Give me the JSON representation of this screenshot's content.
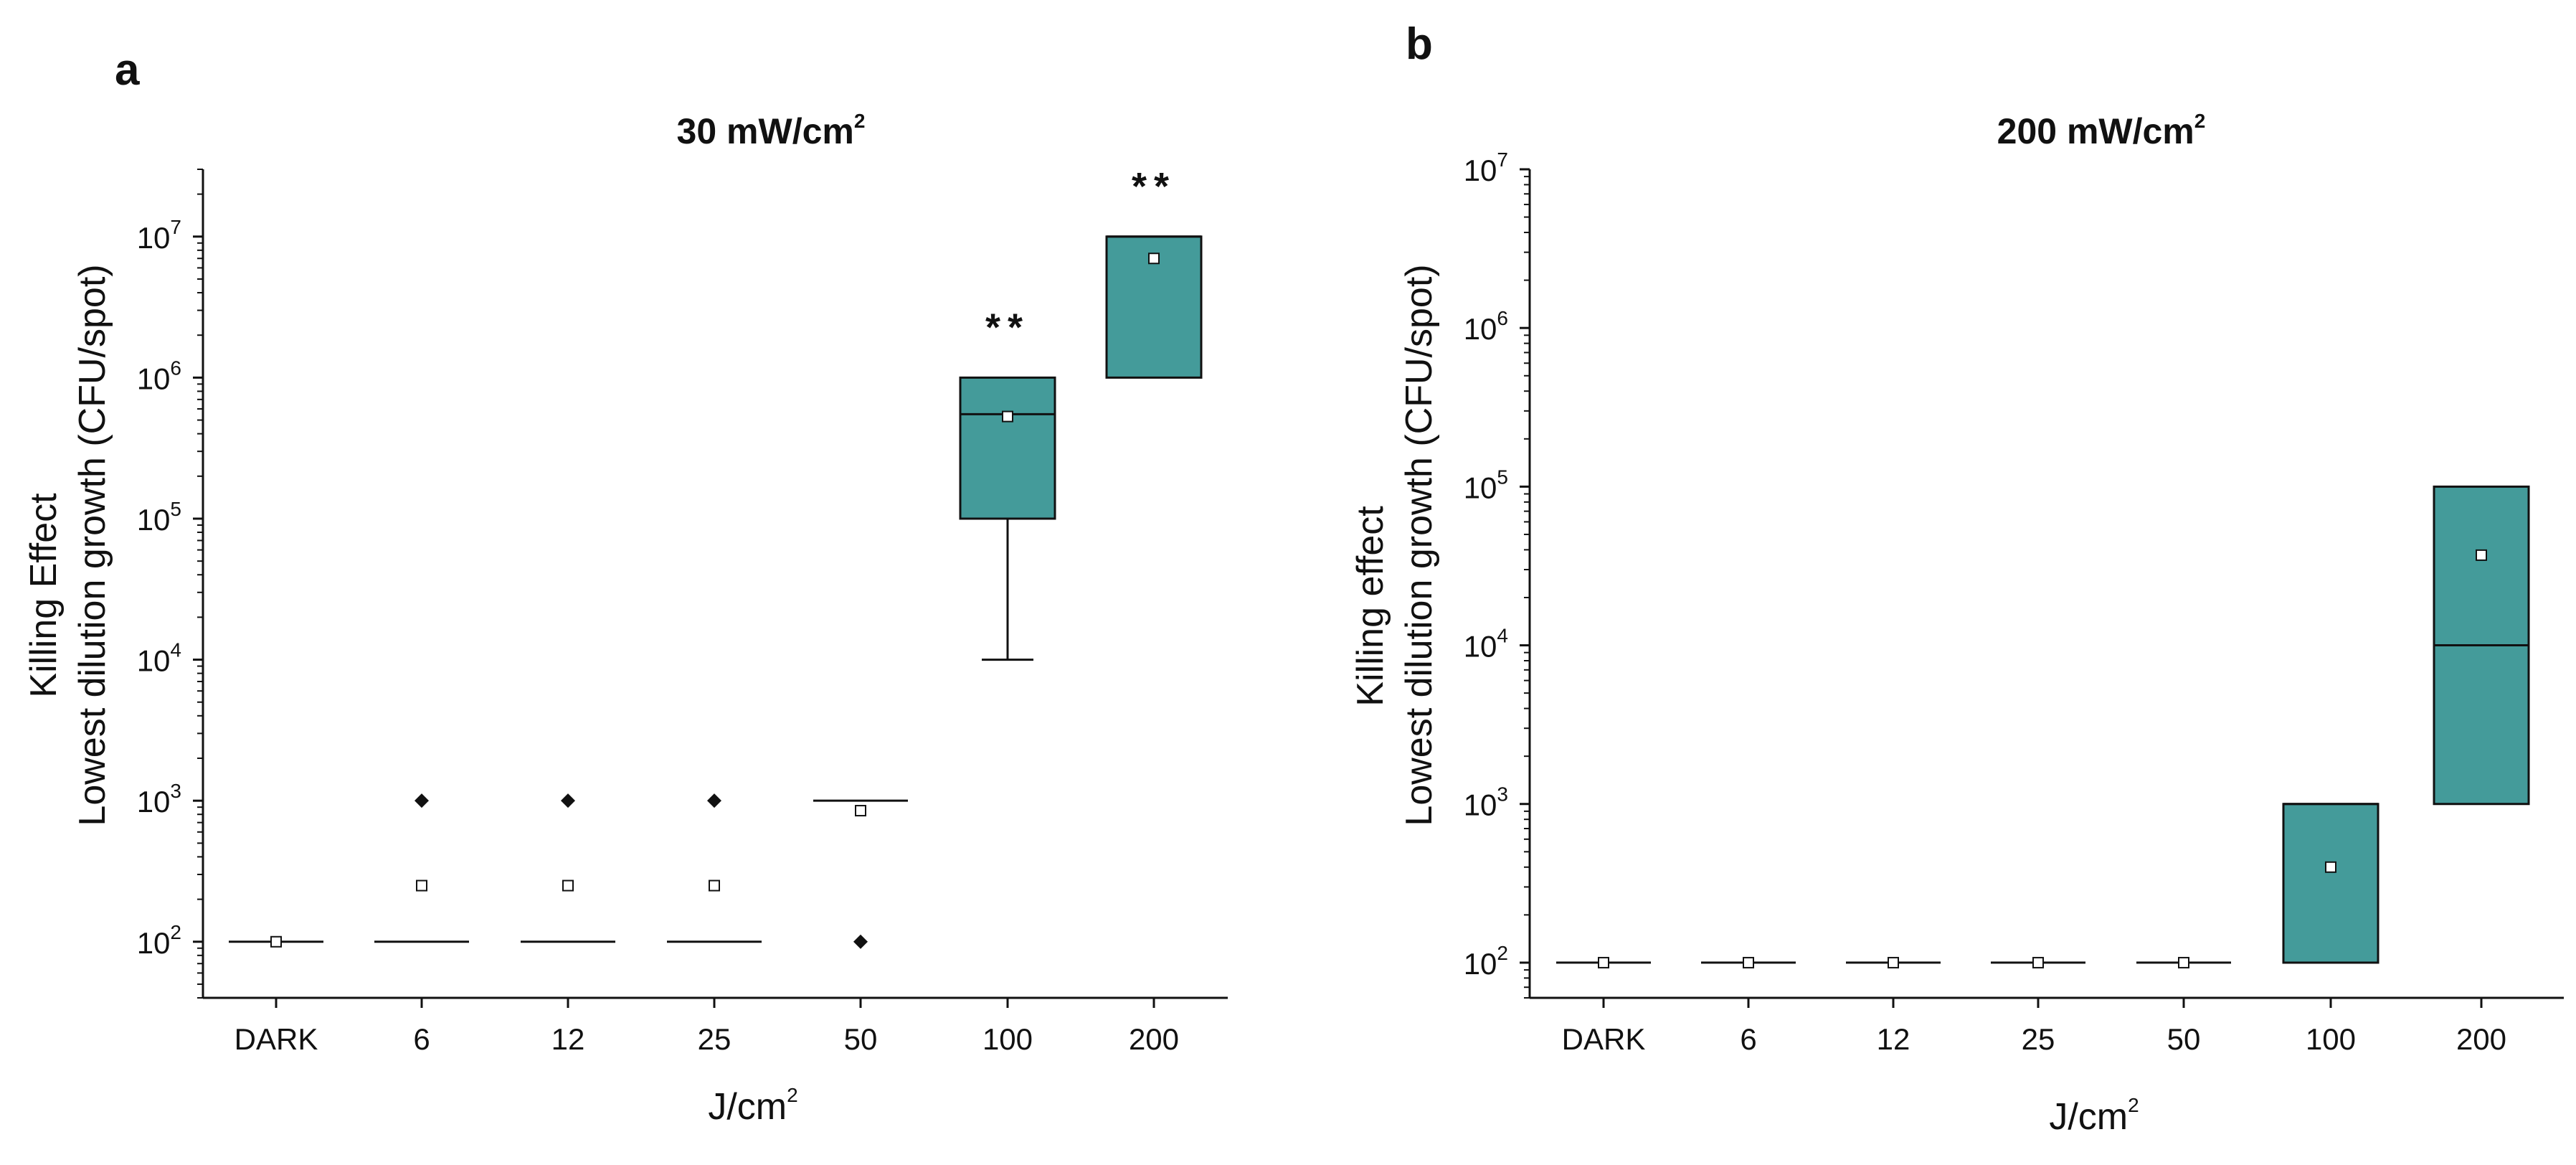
{
  "colors": {
    "box_fill": "#449B9A",
    "stroke": "#111111"
  },
  "chart_data": [
    {
      "panel": "a",
      "type": "box",
      "title_base": "30 mW/cm",
      "title_exp": "2",
      "xlabel_base": "J/cm",
      "xlabel_exp": "2",
      "ylabel_line1": "Killing Effect",
      "ylabel_line2": "Lowest dilution growth (CFU/spot)",
      "yscale": "log10",
      "ylim": [
        40,
        30000000
      ],
      "y_ticks": [
        {
          "e": 2
        },
        {
          "e": 3
        },
        {
          "e": 4
        },
        {
          "e": 5
        },
        {
          "e": 6
        },
        {
          "e": 7
        }
      ],
      "categories": [
        "DARK",
        "6",
        "12",
        "25",
        "50",
        "100",
        "200"
      ],
      "boxes": [
        {
          "category": "DARK",
          "q1": 100,
          "median": 100,
          "q3": 100,
          "mean": 100,
          "outliers": []
        },
        {
          "category": "6",
          "q1": 100,
          "median": 100,
          "q3": 100,
          "mean": 250,
          "outliers": [
            1000
          ]
        },
        {
          "category": "12",
          "q1": 100,
          "median": 100,
          "q3": 100,
          "mean": 250,
          "outliers": [
            1000
          ]
        },
        {
          "category": "25",
          "q1": 100,
          "median": 100,
          "q3": 100,
          "mean": 250,
          "outliers": [
            1000
          ]
        },
        {
          "category": "50",
          "q1": 1000,
          "median": 1000,
          "q3": 1000,
          "mean": 850,
          "outliers": [
            100
          ]
        },
        {
          "category": "100",
          "q1": 100000,
          "median": 550000,
          "q3": 1000000,
          "mean": 530000,
          "whisker_low": 10000,
          "outliers": [],
          "sig": "**"
        },
        {
          "category": "200",
          "q1": 1000000,
          "median": 10000000,
          "q3": 10000000,
          "mean": 7000000,
          "outliers": [],
          "sig": "**"
        }
      ]
    },
    {
      "panel": "b",
      "type": "box",
      "title_base": "200 mW/cm",
      "title_exp": "2",
      "xlabel_base": "J/cm",
      "xlabel_exp": "2",
      "ylabel_line1": "Killing effect",
      "ylabel_line2": "Lowest dilution growth (CFU/spot)",
      "yscale": "log10",
      "ylim": [
        60,
        10000000
      ],
      "y_ticks": [
        {
          "e": 2
        },
        {
          "e": 3
        },
        {
          "e": 4
        },
        {
          "e": 5
        },
        {
          "e": 6
        },
        {
          "e": 7
        }
      ],
      "categories": [
        "DARK",
        "6",
        "12",
        "25",
        "50",
        "100",
        "200"
      ],
      "boxes": [
        {
          "category": "DARK",
          "q1": 100,
          "median": 100,
          "q3": 100,
          "mean": 100,
          "outliers": []
        },
        {
          "category": "6",
          "q1": 100,
          "median": 100,
          "q3": 100,
          "mean": 100,
          "outliers": []
        },
        {
          "category": "12",
          "q1": 100,
          "median": 100,
          "q3": 100,
          "mean": 100,
          "outliers": []
        },
        {
          "category": "25",
          "q1": 100,
          "median": 100,
          "q3": 100,
          "mean": 100,
          "outliers": []
        },
        {
          "category": "50",
          "q1": 100,
          "median": 100,
          "q3": 100,
          "mean": 100,
          "outliers": []
        },
        {
          "category": "100",
          "q1": 100,
          "median": 1000,
          "q3": 1000,
          "mean": 400,
          "outliers": []
        },
        {
          "category": "200",
          "q1": 1000,
          "median": 10000,
          "q3": 100000,
          "mean": 37000,
          "outliers": []
        }
      ]
    }
  ]
}
